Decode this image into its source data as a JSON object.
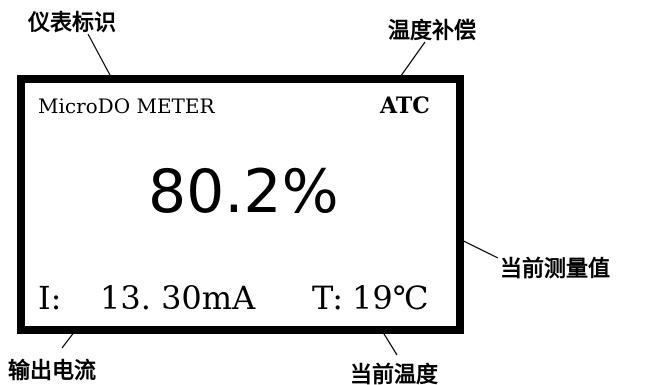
{
  "callouts": {
    "meter_id": "仪表标识",
    "temp_comp": "温度补偿",
    "current_value": "当前测量值",
    "output_current": "输出电流",
    "current_temp": "当前温度"
  },
  "display": {
    "meter_name": "MicroDO METER",
    "atc": "ATC",
    "reading": "80.2%",
    "current_label": "I:",
    "current_value": "13. 30mA",
    "temp_label": "T:",
    "temp_value": "19℃"
  }
}
